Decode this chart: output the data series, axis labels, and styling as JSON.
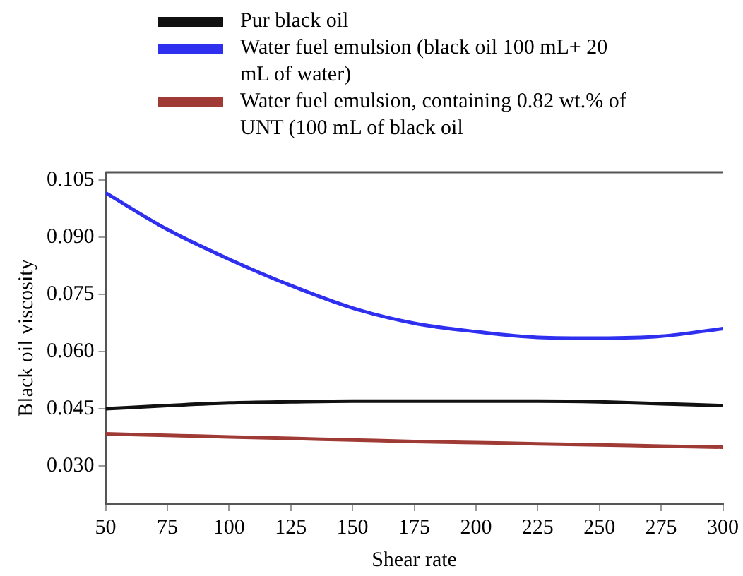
{
  "chart_data": {
    "type": "line",
    "xlabel": "Shear rate",
    "ylabel": "Black oil viscosity",
    "x": [
      50,
      75,
      100,
      125,
      150,
      175,
      200,
      225,
      250,
      275,
      300
    ],
    "series": [
      {
        "name": "Pur black oil",
        "color": "#111111",
        "values": [
          0.045,
          0.0458,
          0.0465,
          0.0468,
          0.047,
          0.047,
          0.047,
          0.047,
          0.0468,
          0.0463,
          0.0458
        ]
      },
      {
        "name": "Water fuel emulsion (black oil 100 mL+ 20 mL of water)",
        "color": "#2f2ff0",
        "values": [
          0.1016,
          0.092,
          0.0842,
          0.0773,
          0.0714,
          0.0674,
          0.0652,
          0.0637,
          0.0635,
          0.064,
          0.066
        ]
      },
      {
        "name": "Water fuel emulsion, containing 0.82 wt.% of UNT (100 mL of black oil",
        "color": "#a03a35",
        "values": [
          0.0384,
          0.038,
          0.0376,
          0.0372,
          0.0368,
          0.0364,
          0.0361,
          0.0358,
          0.0355,
          0.0352,
          0.0349
        ]
      }
    ],
    "xlim": [
      50,
      300
    ],
    "xticks": [
      50,
      75,
      100,
      125,
      150,
      175,
      200,
      225,
      250,
      275,
      300
    ],
    "ylim": [
      0.02,
      0.107
    ],
    "yticks": [
      {
        "value": 0.03,
        "label": "0.030"
      },
      {
        "value": 0.045,
        "label": "0.045"
      },
      {
        "value": 0.06,
        "label": "0.060"
      },
      {
        "value": 0.075,
        "label": "0.075"
      },
      {
        "value": 0.09,
        "label": "0.090"
      },
      {
        "value": 0.105,
        "label": "0.105"
      }
    ],
    "legend": "top",
    "grid": false,
    "marker": "none",
    "line_style": "solid"
  }
}
